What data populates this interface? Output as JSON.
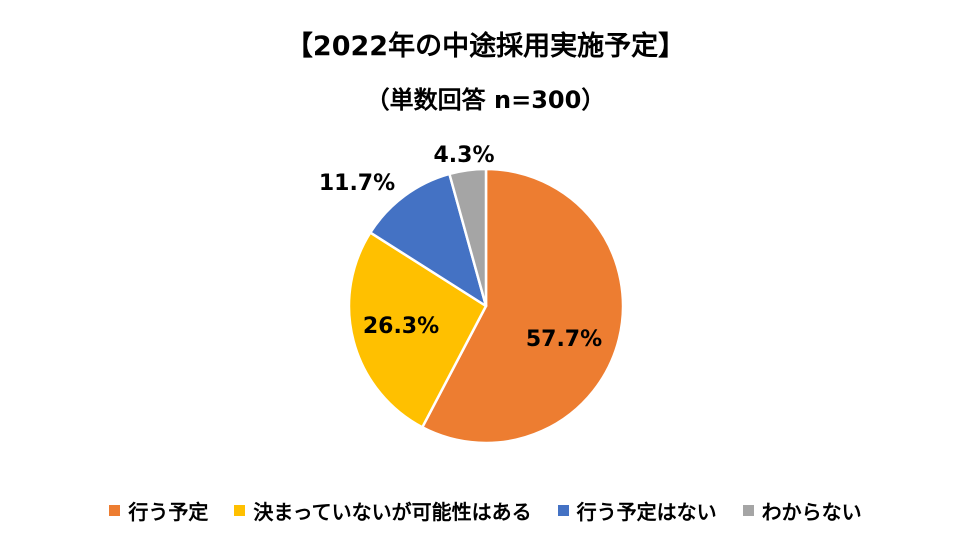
{
  "title": "【2022年の中途採用実施予定】",
  "subtitle": "（単数回答 n=300）",
  "chart_data": {
    "type": "pie",
    "title": "【2022年の中途採用実施予定】",
    "subtitle": "（単数回答 n=300）",
    "unit": "%",
    "legend_position": "bottom",
    "slices": [
      {
        "name": "行う予定",
        "value": 57.7,
        "label": "57.7%",
        "color": "#ED7D31"
      },
      {
        "name": "決まっていないが可能性はある",
        "value": 26.3,
        "label": "26.3%",
        "color": "#FFC000"
      },
      {
        "name": "行う予定はない",
        "value": 11.7,
        "label": "11.7%",
        "color": "#4472C4"
      },
      {
        "name": "わからない",
        "value": 4.3,
        "label": "4.3%",
        "color": "#A5A5A5"
      }
    ]
  }
}
